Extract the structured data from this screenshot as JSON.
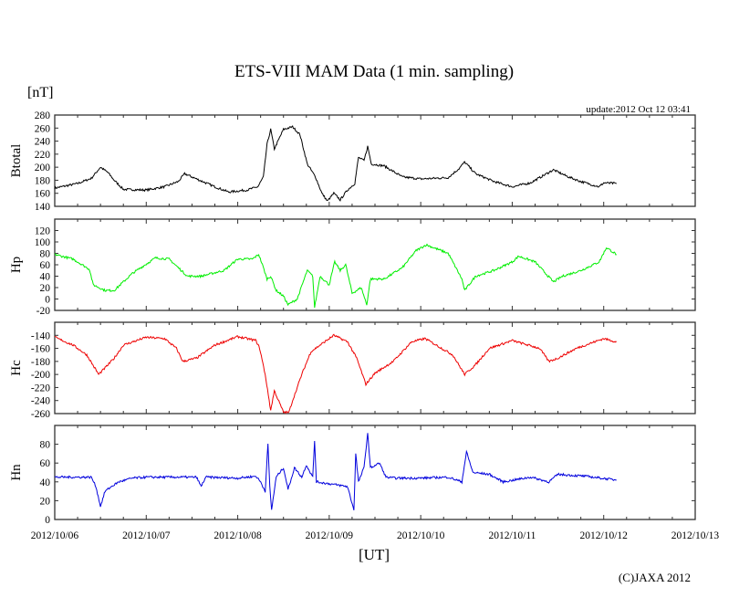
{
  "chart_data": {
    "type": "line",
    "title": "ETS-VIII MAM Data (1 min. sampling)",
    "unit_label": "[nT]",
    "update_label": "update:2012 Oct 12 03:41",
    "xlabel": "[UT]",
    "copyright": "(C)JAXA 2012",
    "x_unit": "days since 2012/10/06 00:00 UT",
    "xlim": [
      0,
      7
    ],
    "x_tick_labels": [
      "2012/10/06",
      "2012/10/07",
      "2012/10/08",
      "2012/10/09",
      "2012/10/10",
      "2012/10/11",
      "2012/10/12",
      "2012/10/13"
    ],
    "grid": false,
    "panels": [
      {
        "name": "Btotal",
        "ylabel": "Btotal",
        "color": "#000000",
        "ylim": [
          140,
          280
        ],
        "yticks": [
          140,
          160,
          180,
          200,
          220,
          240,
          260,
          280
        ],
        "points": [
          [
            0,
            168
          ],
          [
            0.25,
            175
          ],
          [
            0.4,
            183
          ],
          [
            0.5,
            200
          ],
          [
            0.58,
            192
          ],
          [
            0.65,
            180
          ],
          [
            0.75,
            166
          ],
          [
            1.0,
            165
          ],
          [
            1.2,
            170
          ],
          [
            1.35,
            178
          ],
          [
            1.42,
            190
          ],
          [
            1.55,
            182
          ],
          [
            1.75,
            170
          ],
          [
            1.9,
            162
          ],
          [
            2.1,
            165
          ],
          [
            2.22,
            170
          ],
          [
            2.28,
            185
          ],
          [
            2.32,
            235
          ],
          [
            2.36,
            258
          ],
          [
            2.4,
            228
          ],
          [
            2.5,
            258
          ],
          [
            2.6,
            262
          ],
          [
            2.68,
            250
          ],
          [
            2.76,
            205
          ],
          [
            2.85,
            185
          ],
          [
            2.92,
            160
          ],
          [
            2.98,
            148
          ],
          [
            3.05,
            160
          ],
          [
            3.12,
            150
          ],
          [
            3.2,
            165
          ],
          [
            3.28,
            175
          ],
          [
            3.32,
            215
          ],
          [
            3.38,
            210
          ],
          [
            3.42,
            232
          ],
          [
            3.46,
            205
          ],
          [
            3.6,
            202
          ],
          [
            3.8,
            185
          ],
          [
            4.0,
            182
          ],
          [
            4.3,
            184
          ],
          [
            4.42,
            198
          ],
          [
            4.48,
            208
          ],
          [
            4.6,
            190
          ],
          [
            4.8,
            178
          ],
          [
            5.0,
            170
          ],
          [
            5.2,
            176
          ],
          [
            5.35,
            188
          ],
          [
            5.45,
            196
          ],
          [
            5.6,
            186
          ],
          [
            5.75,
            178
          ],
          [
            5.95,
            170
          ],
          [
            6.0,
            176
          ],
          [
            6.14,
            175
          ]
        ]
      },
      {
        "name": "Hp",
        "ylabel": "Hp",
        "color": "#00ee00",
        "ylim": [
          -20,
          140
        ],
        "yticks": [
          -20,
          0,
          20,
          40,
          60,
          80,
          100,
          120,
          140
        ],
        "points": [
          [
            0,
            78
          ],
          [
            0.2,
            70
          ],
          [
            0.38,
            52
          ],
          [
            0.42,
            25
          ],
          [
            0.55,
            15
          ],
          [
            0.65,
            15
          ],
          [
            0.85,
            45
          ],
          [
            1.1,
            72
          ],
          [
            1.25,
            70
          ],
          [
            1.45,
            40
          ],
          [
            1.6,
            40
          ],
          [
            1.85,
            50
          ],
          [
            2.0,
            70
          ],
          [
            2.16,
            70
          ],
          [
            2.23,
            78
          ],
          [
            2.27,
            60
          ],
          [
            2.32,
            35
          ],
          [
            2.36,
            40
          ],
          [
            2.42,
            15
          ],
          [
            2.5,
            5
          ],
          [
            2.55,
            -10
          ],
          [
            2.65,
            0
          ],
          [
            2.76,
            50
          ],
          [
            2.82,
            40
          ],
          [
            2.84,
            -15
          ],
          [
            2.9,
            40
          ],
          [
            3.0,
            25
          ],
          [
            3.06,
            65
          ],
          [
            3.12,
            50
          ],
          [
            3.18,
            60
          ],
          [
            3.25,
            10
          ],
          [
            3.35,
            20
          ],
          [
            3.41,
            -10
          ],
          [
            3.45,
            35
          ],
          [
            3.6,
            35
          ],
          [
            3.8,
            55
          ],
          [
            3.95,
            85
          ],
          [
            4.06,
            95
          ],
          [
            4.3,
            80
          ],
          [
            4.45,
            35
          ],
          [
            4.48,
            15
          ],
          [
            4.6,
            40
          ],
          [
            4.8,
            50
          ],
          [
            5.0,
            65
          ],
          [
            5.07,
            75
          ],
          [
            5.25,
            65
          ],
          [
            5.45,
            30
          ],
          [
            5.55,
            40
          ],
          [
            5.75,
            50
          ],
          [
            5.95,
            65
          ],
          [
            6.03,
            90
          ],
          [
            6.14,
            78
          ]
        ]
      },
      {
        "name": "Hc",
        "ylabel": "Hc",
        "color": "#ee0000",
        "ylim": [
          -260,
          -120
        ],
        "yticks": [
          -260,
          -240,
          -220,
          -200,
          -180,
          -160,
          -140,
          -120
        ],
        "points": [
          [
            0,
            -143
          ],
          [
            0.2,
            -155
          ],
          [
            0.35,
            -170
          ],
          [
            0.48,
            -200
          ],
          [
            0.55,
            -190
          ],
          [
            0.65,
            -175
          ],
          [
            0.75,
            -155
          ],
          [
            1.0,
            -143
          ],
          [
            1.2,
            -145
          ],
          [
            1.33,
            -160
          ],
          [
            1.4,
            -180
          ],
          [
            1.55,
            -175
          ],
          [
            1.75,
            -155
          ],
          [
            2.0,
            -142
          ],
          [
            2.2,
            -148
          ],
          [
            2.24,
            -160
          ],
          [
            2.3,
            -200
          ],
          [
            2.36,
            -255
          ],
          [
            2.4,
            -225
          ],
          [
            2.5,
            -258
          ],
          [
            2.56,
            -258
          ],
          [
            2.6,
            -240
          ],
          [
            2.7,
            -200
          ],
          [
            2.8,
            -165
          ],
          [
            2.95,
            -150
          ],
          [
            3.05,
            -140
          ],
          [
            3.2,
            -150
          ],
          [
            3.3,
            -175
          ],
          [
            3.4,
            -215
          ],
          [
            3.5,
            -198
          ],
          [
            3.7,
            -180
          ],
          [
            3.9,
            -150
          ],
          [
            4.05,
            -145
          ],
          [
            4.35,
            -170
          ],
          [
            4.48,
            -200
          ],
          [
            4.6,
            -185
          ],
          [
            4.75,
            -160
          ],
          [
            5.0,
            -148
          ],
          [
            5.3,
            -160
          ],
          [
            5.4,
            -180
          ],
          [
            5.5,
            -175
          ],
          [
            5.7,
            -160
          ],
          [
            6.0,
            -145
          ],
          [
            6.14,
            -150
          ]
        ]
      },
      {
        "name": "Hn",
        "ylabel": "Hn",
        "color": "#0000dd",
        "ylim": [
          0,
          100
        ],
        "yticks": [
          0,
          20,
          40,
          60,
          80,
          100
        ],
        "points": [
          [
            0,
            45
          ],
          [
            0.4,
            45
          ],
          [
            0.45,
            35
          ],
          [
            0.5,
            14
          ],
          [
            0.55,
            30
          ],
          [
            0.62,
            35
          ],
          [
            0.7,
            40
          ],
          [
            0.85,
            44
          ],
          [
            1.0,
            45
          ],
          [
            1.55,
            45
          ],
          [
            1.6,
            35
          ],
          [
            1.65,
            45
          ],
          [
            2.0,
            44
          ],
          [
            2.2,
            46
          ],
          [
            2.25,
            40
          ],
          [
            2.3,
            30
          ],
          [
            2.33,
            80
          ],
          [
            2.35,
            35
          ],
          [
            2.37,
            10
          ],
          [
            2.42,
            45
          ],
          [
            2.5,
            55
          ],
          [
            2.55,
            32
          ],
          [
            2.62,
            55
          ],
          [
            2.7,
            45
          ],
          [
            2.75,
            58
          ],
          [
            2.82,
            45
          ],
          [
            2.84,
            84
          ],
          [
            2.86,
            40
          ],
          [
            3.0,
            38
          ],
          [
            3.2,
            35
          ],
          [
            3.27,
            10
          ],
          [
            3.29,
            70
          ],
          [
            3.32,
            40
          ],
          [
            3.38,
            55
          ],
          [
            3.42,
            92
          ],
          [
            3.45,
            55
          ],
          [
            3.55,
            60
          ],
          [
            3.62,
            45
          ],
          [
            3.72,
            44
          ],
          [
            4.0,
            44
          ],
          [
            4.3,
            45
          ],
          [
            4.45,
            40
          ],
          [
            4.5,
            72
          ],
          [
            4.57,
            50
          ],
          [
            4.75,
            48
          ],
          [
            4.9,
            40
          ],
          [
            5.2,
            45
          ],
          [
            5.4,
            40
          ],
          [
            5.5,
            48
          ],
          [
            5.8,
            46
          ],
          [
            6.14,
            42
          ]
        ]
      }
    ]
  }
}
